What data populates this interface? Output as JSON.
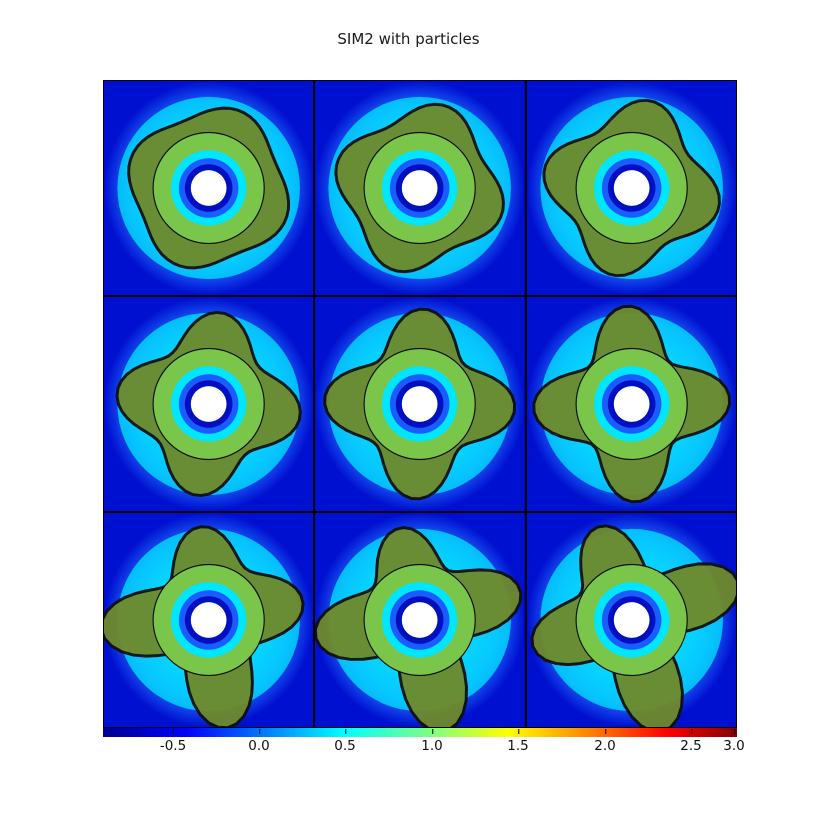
{
  "title": "SIM2 with particles",
  "colorbar": {
    "ticks": [
      "-0.5",
      "0.0",
      "0.5",
      "1.0",
      "1.5",
      "2.0",
      "2.5",
      "3.0"
    ],
    "colors": [
      "#00008f",
      "#0000ff",
      "#0080ff",
      "#00ffff",
      "#80ff80",
      "#ffff00",
      "#ff8000",
      "#ff0000",
      "#800000"
    ]
  },
  "panels": {
    "count": 9,
    "rows": 3,
    "cols": 3
  }
}
